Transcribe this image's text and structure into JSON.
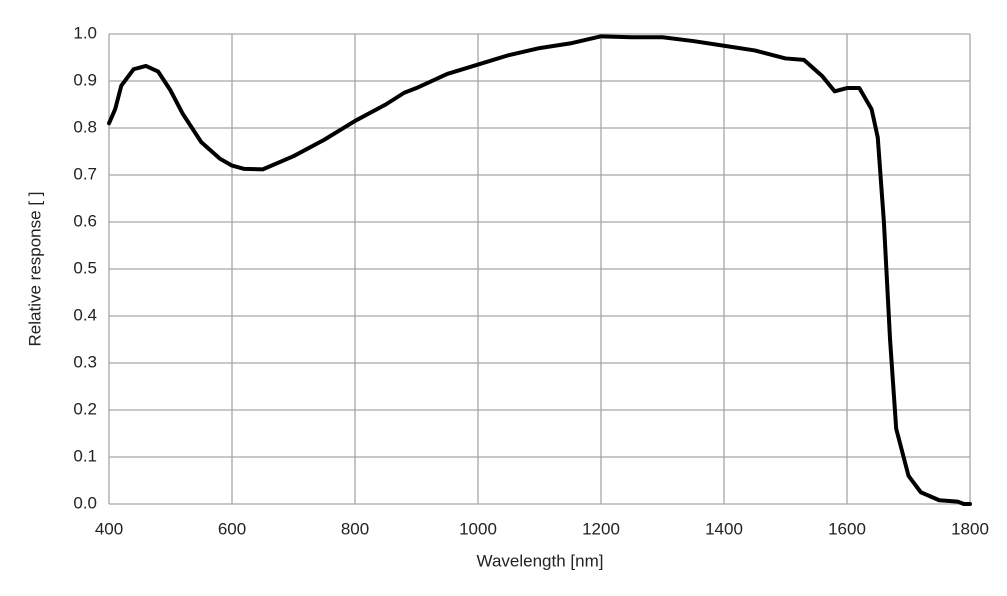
{
  "chart_data": {
    "type": "line",
    "x_label": "Wavelength [nm]",
    "y_label": "Relative response [ ]",
    "x": [
      400,
      410,
      420,
      440,
      460,
      480,
      500,
      520,
      550,
      580,
      600,
      620,
      650,
      700,
      750,
      800,
      850,
      880,
      900,
      950,
      1000,
      1050,
      1100,
      1150,
      1200,
      1250,
      1300,
      1350,
      1400,
      1450,
      1500,
      1530,
      1560,
      1580,
      1600,
      1620,
      1640,
      1650,
      1660,
      1670,
      1680,
      1700,
      1720,
      1750,
      1780,
      1790,
      1800
    ],
    "series": [
      {
        "color": "#000000",
        "values": [
          0.81,
          0.84,
          0.89,
          0.925,
          0.932,
          0.92,
          0.88,
          0.83,
          0.77,
          0.735,
          0.72,
          0.713,
          0.712,
          0.74,
          0.775,
          0.815,
          0.85,
          0.875,
          0.885,
          0.915,
          0.935,
          0.955,
          0.97,
          0.98,
          0.995,
          0.993,
          0.993,
          0.985,
          0.975,
          0.965,
          0.948,
          0.945,
          0.91,
          0.878,
          0.885,
          0.885,
          0.84,
          0.78,
          0.6,
          0.35,
          0.16,
          0.06,
          0.025,
          0.008,
          0.005,
          0.0,
          0.0
        ]
      }
    ],
    "xlim": [
      400,
      1800
    ],
    "xticks": [
      400,
      600,
      800,
      1000,
      1200,
      1400,
      1600,
      1800
    ],
    "ylim": [
      0,
      1
    ],
    "yticks": [
      {
        "value": 0,
        "label": "0.0"
      },
      0.1,
      0.2,
      0.3,
      0.4,
      0.5,
      0.6,
      0.7,
      0.8,
      0.9,
      {
        "value": 1,
        "label": "1.0"
      }
    ],
    "grid": true
  }
}
